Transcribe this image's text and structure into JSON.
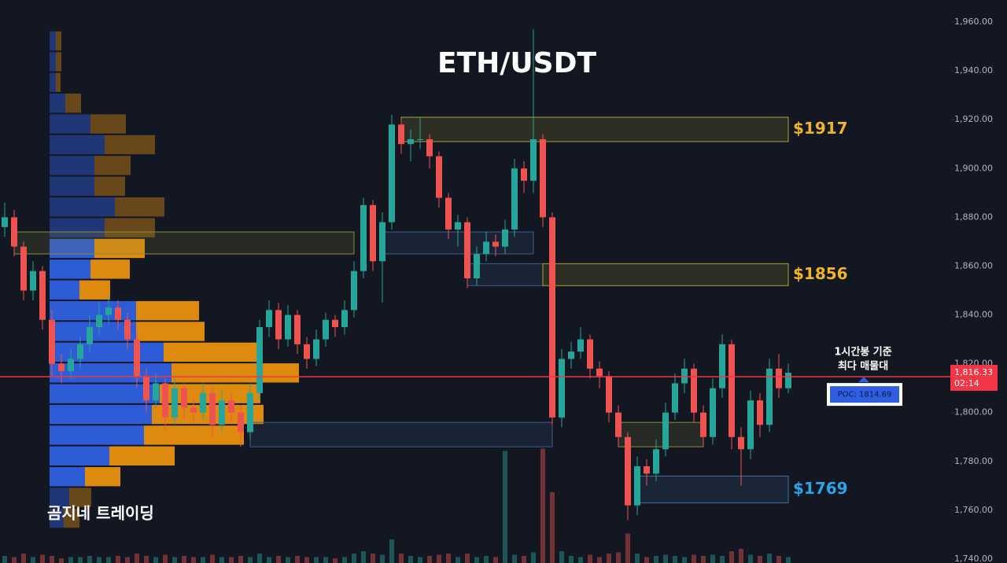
{
  "chart_data": {
    "type": "candlestick",
    "title": "ETH/USDT",
    "watermark": "곰지네 트레이딩",
    "ylim": [
      1740,
      1960
    ],
    "yticks": [
      {
        "value": 1740,
        "label": "1,740.00"
      },
      {
        "value": 1760,
        "label": "1,760.00"
      },
      {
        "value": 1780,
        "label": "1,780.00"
      },
      {
        "value": 1800,
        "label": "1,800.00"
      },
      {
        "value": 1820,
        "label": "1,820.00"
      },
      {
        "value": 1840,
        "label": "1,840.00"
      },
      {
        "value": 1860,
        "label": "1,860.00"
      },
      {
        "value": 1880,
        "label": "1,880.00"
      },
      {
        "value": 1900,
        "label": "1,900.00"
      },
      {
        "value": 1920,
        "label": "1,920.00"
      },
      {
        "value": 1940,
        "label": "1,940.00"
      },
      {
        "value": 1960,
        "label": "1,960.00"
      }
    ],
    "grid": false,
    "up_color": "#26a69a",
    "down_color": "#ef5350",
    "ohlc": [
      [
        1876,
        1886,
        1872,
        1880
      ],
      [
        1880,
        1883,
        1864,
        1868
      ],
      [
        1868,
        1870,
        1846,
        1850
      ],
      [
        1850,
        1862,
        1846,
        1858
      ],
      [
        1858,
        1860,
        1834,
        1838
      ],
      [
        1838,
        1842,
        1815,
        1820
      ],
      [
        1820,
        1824,
        1812,
        1817
      ],
      [
        1817,
        1826,
        1814,
        1822
      ],
      [
        1822,
        1831,
        1818,
        1828
      ],
      [
        1828,
        1840,
        1825,
        1835
      ],
      [
        1835,
        1845,
        1832,
        1840
      ],
      [
        1840,
        1848,
        1836,
        1843
      ],
      [
        1843,
        1846,
        1834,
        1838
      ],
      [
        1838,
        1841,
        1826,
        1830
      ],
      [
        1830,
        1833,
        1810,
        1815
      ],
      [
        1815,
        1818,
        1800,
        1805
      ],
      [
        1805,
        1816,
        1802,
        1812
      ],
      [
        1812,
        1814,
        1793,
        1798
      ],
      [
        1798,
        1814,
        1795,
        1810
      ],
      [
        1810,
        1812,
        1797,
        1802
      ],
      [
        1802,
        1806,
        1796,
        1800
      ],
      [
        1800,
        1812,
        1797,
        1808
      ],
      [
        1808,
        1810,
        1790,
        1795
      ],
      [
        1795,
        1809,
        1792,
        1805
      ],
      [
        1805,
        1808,
        1796,
        1800
      ],
      [
        1800,
        1803,
        1786,
        1792
      ],
      [
        1792,
        1812,
        1789,
        1808
      ],
      [
        1808,
        1838,
        1805,
        1835
      ],
      [
        1835,
        1846,
        1831,
        1842
      ],
      [
        1842,
        1845,
        1826,
        1830
      ],
      [
        1830,
        1844,
        1827,
        1840
      ],
      [
        1840,
        1842,
        1824,
        1828
      ],
      [
        1828,
        1831,
        1818,
        1822
      ],
      [
        1822,
        1834,
        1819,
        1830
      ],
      [
        1830,
        1841,
        1827,
        1838
      ],
      [
        1838,
        1840,
        1831,
        1835
      ],
      [
        1835,
        1846,
        1832,
        1842
      ],
      [
        1842,
        1862,
        1839,
        1858
      ],
      [
        1858,
        1888,
        1855,
        1885
      ],
      [
        1885,
        1887,
        1858,
        1862
      ],
      [
        1862,
        1882,
        1845,
        1878
      ],
      [
        1878,
        1922,
        1875,
        1918
      ],
      [
        1918,
        1920,
        1906,
        1910
      ],
      [
        1910,
        1916,
        1903,
        1912
      ],
      [
        1912,
        1921,
        1908,
        1912
      ],
      [
        1912,
        1914,
        1900,
        1905
      ],
      [
        1905,
        1907,
        1884,
        1888
      ],
      [
        1888,
        1890,
        1871,
        1875
      ],
      [
        1875,
        1881,
        1868,
        1878
      ],
      [
        1878,
        1880,
        1851,
        1855
      ],
      [
        1855,
        1868,
        1852,
        1865
      ],
      [
        1865,
        1874,
        1862,
        1870
      ],
      [
        1870,
        1873,
        1864,
        1868
      ],
      [
        1868,
        1879,
        1865,
        1875
      ],
      [
        1875,
        1904,
        1872,
        1900
      ],
      [
        1900,
        1903,
        1890,
        1895
      ],
      [
        1895,
        1957,
        1890,
        1912
      ],
      [
        1912,
        1914,
        1876,
        1880
      ],
      [
        1880,
        1882,
        1795,
        1798
      ],
      [
        1798,
        1826,
        1794,
        1822
      ],
      [
        1822,
        1829,
        1818,
        1825
      ],
      [
        1825,
        1835,
        1822,
        1830
      ],
      [
        1830,
        1832,
        1814,
        1818
      ],
      [
        1818,
        1821,
        1810,
        1815
      ],
      [
        1815,
        1817,
        1796,
        1800
      ],
      [
        1800,
        1803,
        1786,
        1790
      ],
      [
        1790,
        1792,
        1756,
        1762
      ],
      [
        1762,
        1782,
        1758,
        1778
      ],
      [
        1778,
        1781,
        1770,
        1775
      ],
      [
        1775,
        1789,
        1772,
        1785
      ],
      [
        1785,
        1804,
        1782,
        1800
      ],
      [
        1800,
        1816,
        1797,
        1812
      ],
      [
        1812,
        1822,
        1808,
        1818
      ],
      [
        1818,
        1820,
        1796,
        1800
      ],
      [
        1800,
        1803,
        1786,
        1790
      ],
      [
        1790,
        1814,
        1787,
        1810
      ],
      [
        1810,
        1832,
        1806,
        1828
      ],
      [
        1828,
        1830,
        1785,
        1790
      ],
      [
        1790,
        1794,
        1770,
        1785
      ],
      [
        1785,
        1809,
        1781,
        1805
      ],
      [
        1805,
        1808,
        1790,
        1795
      ],
      [
        1795,
        1822,
        1792,
        1818
      ],
      [
        1818,
        1824,
        1806,
        1810
      ],
      [
        1810,
        1820,
        1808,
        1816.33
      ]
    ],
    "volume": [
      6,
      5,
      8,
      5,
      7,
      6,
      4,
      5,
      5,
      6,
      5,
      5,
      6,
      5,
      8,
      6,
      5,
      7,
      5,
      6,
      5,
      5,
      7,
      5,
      5,
      6,
      5,
      8,
      5,
      6,
      5,
      6,
      5,
      5,
      5,
      4,
      5,
      8,
      10,
      8,
      7,
      20,
      8,
      6,
      5,
      6,
      7,
      8,
      5,
      8,
      5,
      6,
      5,
      95,
      7,
      6,
      9,
      97,
      60,
      10,
      6,
      5,
      7,
      5,
      8,
      9,
      25,
      8,
      5,
      6,
      7,
      6,
      5,
      7,
      6,
      7,
      6,
      10,
      12,
      7,
      6,
      8,
      6,
      5
    ],
    "profile": {
      "bins": [
        1752.5,
        1761,
        1769.5,
        1778,
        1786.5,
        1795,
        1803.5,
        1812,
        1820.5,
        1829,
        1837.5,
        1846,
        1854.5,
        1863,
        1871.5,
        1880,
        1888.5,
        1897,
        1905.5,
        1914,
        1922.5,
        1931,
        1939.5,
        1948,
        1956.5
      ],
      "buy": [
        18,
        25,
        45,
        76,
        120,
        130,
        140,
        155,
        145,
        110,
        110,
        38,
        52,
        57,
        70,
        83,
        57,
        57,
        70,
        52,
        20,
        8,
        8,
        8
      ],
      "sell": [
        20,
        28,
        45,
        83,
        127,
        142,
        128,
        162,
        118,
        87,
        80,
        39,
        50,
        64,
        64,
        63,
        39,
        46,
        64,
        45,
        20,
        6,
        7,
        7
      ],
      "value_area": [
        1769.5,
        1871.5
      ],
      "buy_color": "#2f5fe0",
      "sell_color": "#e8900f"
    },
    "zones": [
      {
        "low": 1865,
        "high": 1874,
        "start": 1,
        "end": 37,
        "color": "#8d8a3a"
      },
      {
        "low": 1865,
        "high": 1874,
        "start": 40,
        "end": 56,
        "color": "#3a5f8a"
      },
      {
        "low": 1852,
        "high": 1861,
        "start": 49,
        "end": 57,
        "color": "#3a5f8a"
      },
      {
        "low": 1786,
        "high": 1796,
        "start": 26,
        "end": 58,
        "color": "#3a5f8a"
      },
      {
        "low": 1786,
        "high": 1796,
        "start": 65,
        "end": 74,
        "color": "#8d8a3a"
      },
      {
        "low": 1911,
        "high": 1921,
        "start": 42,
        "end": 83,
        "color": "#a8a23a",
        "label": "$1917",
        "label_color": "#f0b429"
      },
      {
        "low": 1852,
        "high": 1861,
        "start": 57,
        "end": 83,
        "color": "#a8a23a",
        "label": "$1856",
        "label_color": "#f0b429"
      },
      {
        "low": 1763,
        "high": 1774,
        "start": 67,
        "end": 83,
        "color": "#3f6f9f",
        "label": "$1769",
        "label_color": "#2aa4e6"
      }
    ],
    "last_price": {
      "value": 1816.33,
      "label": "1,816.33",
      "countdown": "02:14",
      "color": "#f23645"
    },
    "poc": {
      "value": 1814.69,
      "label": "POC: 1814.69",
      "color": "#f23645"
    },
    "annotation": [
      "1시간봉 기준",
      "최다 매물대"
    ]
  }
}
